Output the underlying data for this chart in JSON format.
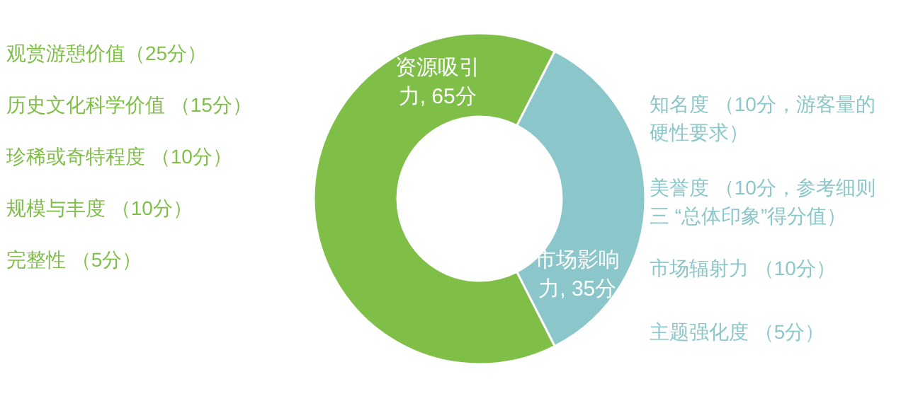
{
  "chart_data": {
    "type": "donut",
    "categories": [
      "资源吸引力",
      "市场影响力"
    ],
    "values": [
      65,
      35
    ],
    "colors": [
      "#7fbf48",
      "#8bc7ca"
    ],
    "value_labels": [
      "65分",
      "35分"
    ],
    "annotations": [
      "观赏游憩价值（25分）",
      "历史文化科学价值 （15分）",
      "珍稀或奇特程度 （10分）",
      "规模与丰度 （10分）",
      "完整性 （5分）",
      "知名度 （10分，游客量的硬性要求）",
      "美誉度 （10分，参考细则三 “总体印象”得分值）",
      "市场辐射力 （10分）",
      "主题强化度 （5分）"
    ]
  }
}
